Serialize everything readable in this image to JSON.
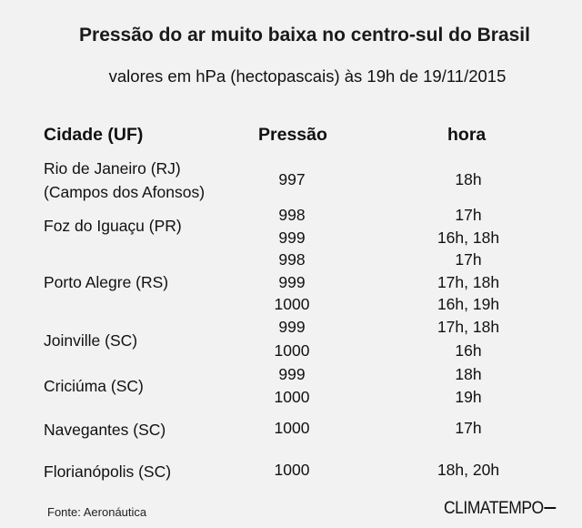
{
  "title": "Pressão do ar muito baixa no centro-sul do Brasil",
  "subtitle": "valores em hPa (hectopascais) às 19h de 19/11/2015",
  "table": {
    "headers": {
      "city": "Cidade (UF)",
      "pressure": "Pressão",
      "hour": "hora"
    },
    "rows": [
      {
        "city_lines": [
          "Rio de Janeiro (RJ)",
          "(Campos dos Afonsos)"
        ],
        "pressure": [
          "997"
        ],
        "hour": [
          "18h"
        ]
      },
      {
        "city_lines": [
          "Foz do Iguaçu (PR)"
        ],
        "pressure": [
          "998",
          "999"
        ],
        "hour": [
          "17h",
          "16h, 18h"
        ]
      },
      {
        "city_lines": [
          "Porto Alegre (RS)"
        ],
        "pressure": [
          "998",
          "999",
          "1000"
        ],
        "hour": [
          "17h",
          "17h, 18h",
          "16h, 19h"
        ]
      },
      {
        "city_lines": [
          "Joinville (SC)"
        ],
        "pressure": [
          "999",
          "1000"
        ],
        "hour": [
          "17h, 18h",
          "16h"
        ]
      },
      {
        "city_lines": [
          "Criciúma (SC)"
        ],
        "pressure": [
          "999",
          "1000"
        ],
        "hour": [
          "18h",
          "19h"
        ]
      },
      {
        "city_lines": [
          "Navegantes (SC)"
        ],
        "pressure": [
          "1000"
        ],
        "hour": [
          "17h"
        ]
      },
      {
        "city_lines": [
          "Florianópolis (SC)"
        ],
        "pressure": [
          "1000"
        ],
        "hour": [
          "18h, 20h"
        ]
      }
    ]
  },
  "source": "Fonte: Aeronáutica",
  "logo_text": "CLIMATEMPO"
}
